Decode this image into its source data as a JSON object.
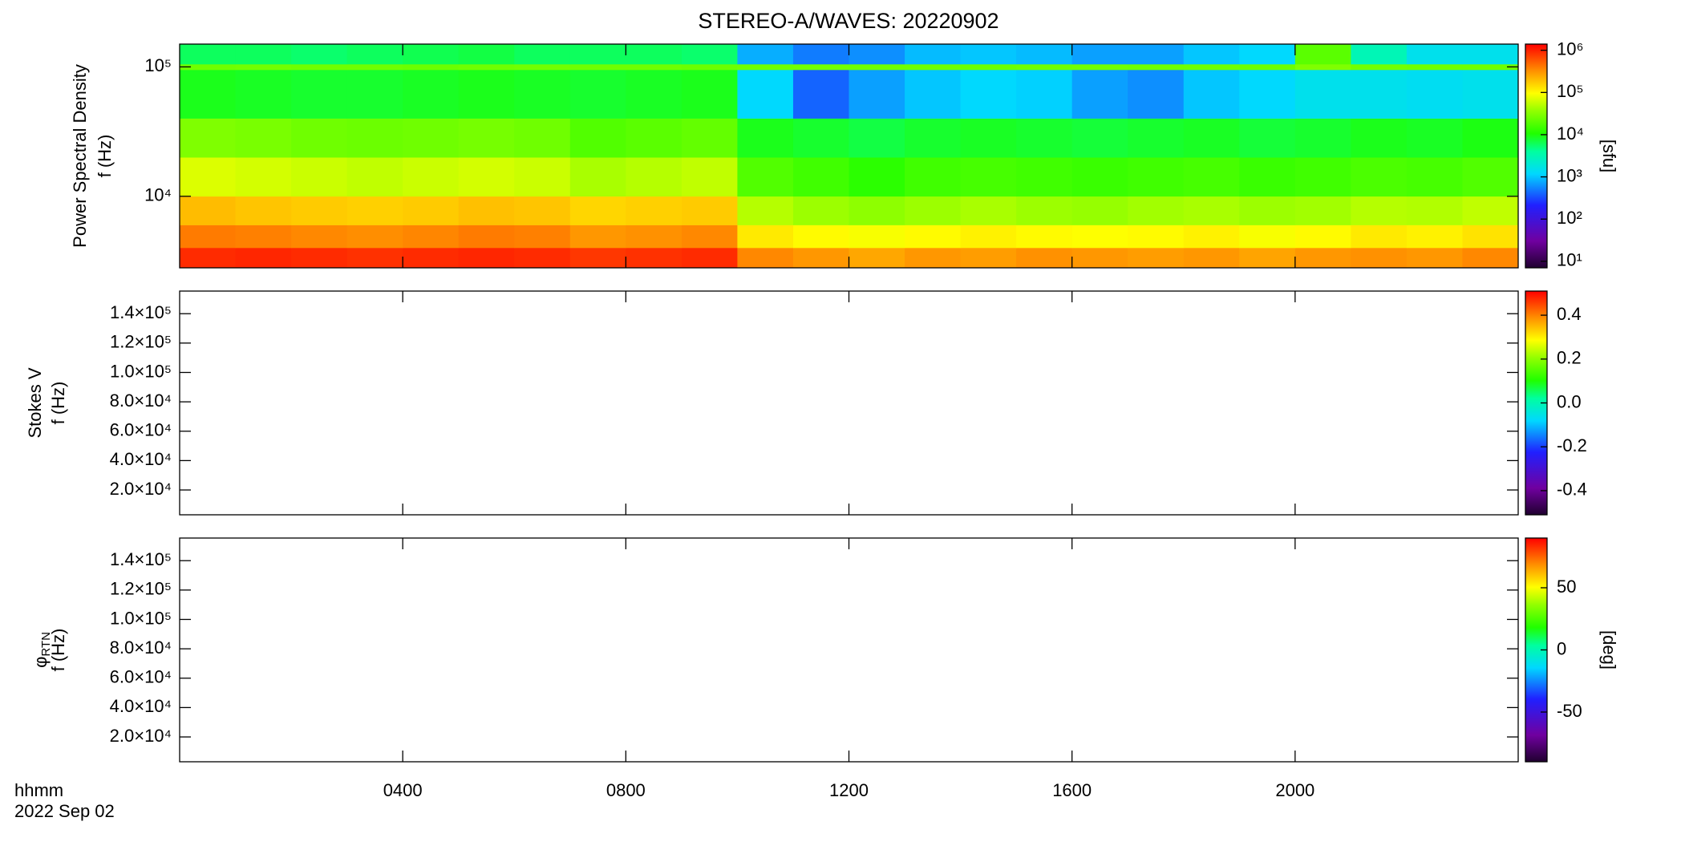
{
  "title": "STEREO-A/WAVES: 20220902",
  "x_axis": {
    "label_lines": [
      "hhmm",
      "2022 Sep 02"
    ],
    "xlim": [
      0,
      24
    ],
    "xticks": [
      {
        "value": 4,
        "label": "0400"
      },
      {
        "value": 8,
        "label": "0800"
      },
      {
        "value": 12,
        "label": "1200"
      },
      {
        "value": 16,
        "label": "1600"
      },
      {
        "value": 20,
        "label": "2000"
      }
    ]
  },
  "chart_data": [
    {
      "type": "heatmap",
      "ylabel_lines": [
        {
          "text": "Power Spectral Density"
        },
        {
          "text": "f (Hz)"
        }
      ],
      "ylog": true,
      "ylim": [
        2800,
        150000
      ],
      "yticks": [
        {
          "value": 10000,
          "label": "10⁴"
        },
        {
          "value": 100000,
          "label": "10⁵"
        }
      ],
      "time_bins": [
        0,
        1,
        2,
        3,
        4,
        5,
        6,
        7,
        8,
        9,
        10,
        11,
        12,
        13,
        14,
        15,
        16,
        17,
        18,
        19,
        20,
        21,
        22,
        23,
        24
      ],
      "freq_bins": [
        2800,
        4000,
        6000,
        10000,
        20000,
        40000,
        95000,
        105000,
        150000
      ],
      "z": [
        [
          900000,
          950000,
          900000,
          850000,
          900000,
          950000,
          900000,
          800000,
          850000,
          900000,
          350000,
          300000,
          250000,
          300000,
          280000,
          320000,
          300000,
          280000,
          300000,
          260000,
          300000,
          320000,
          300000,
          350000
        ],
        [
          400000,
          380000,
          350000,
          330000,
          360000,
          400000,
          380000,
          300000,
          320000,
          350000,
          120000,
          100000,
          90000,
          100000,
          110000,
          100000,
          95000,
          100000,
          110000,
          90000,
          100000,
          120000,
          110000,
          130000
        ],
        [
          200000,
          180000,
          170000,
          160000,
          170000,
          190000,
          180000,
          150000,
          160000,
          170000,
          50000,
          40000,
          35000,
          40000,
          45000,
          40000,
          38000,
          42000,
          45000,
          40000,
          42000,
          50000,
          48000,
          55000
        ],
        [
          70000,
          65000,
          60000,
          55000,
          60000,
          65000,
          60000,
          45000,
          50000,
          55000,
          18000,
          15000,
          12000,
          15000,
          16000,
          15000,
          14000,
          15000,
          16000,
          14000,
          15000,
          17000,
          16000,
          18000
        ],
        [
          30000,
          28000,
          25000,
          24000,
          25000,
          27000,
          25000,
          18000,
          20000,
          22000,
          9000,
          8000,
          7000,
          8000,
          8500,
          8000,
          7500,
          8000,
          8500,
          7500,
          8000,
          9000,
          8500,
          9500
        ],
        [
          9000,
          8500,
          8000,
          8000,
          8500,
          9000,
          8500,
          8000,
          8500,
          9000,
          1200,
          400,
          700,
          1000,
          1200,
          1100,
          700,
          600,
          1000,
          1200,
          1500,
          1500,
          1400,
          1500
        ],
        [
          25000,
          26000,
          25000,
          25000,
          24000,
          25000,
          26000,
          25000,
          25000,
          24000,
          25000,
          26000,
          25000,
          25000,
          24000,
          25000,
          26000,
          25000,
          25000,
          24000,
          30000,
          26000,
          25000,
          25000
        ],
        [
          6000,
          6000,
          5500,
          6000,
          6500,
          7000,
          6000,
          6000,
          6000,
          5500,
          800,
          500,
          600,
          900,
          1000,
          900,
          700,
          700,
          1000,
          1200,
          20000,
          3000,
          1500,
          1500
        ]
      ],
      "colorbar": {
        "clim": [
          7,
          1400000
        ],
        "log": true,
        "label": "[sfu]",
        "ticks": [
          {
            "value": 10,
            "label": "10¹"
          },
          {
            "value": 100,
            "label": "10²"
          },
          {
            "value": 1000,
            "label": "10³"
          },
          {
            "value": 10000,
            "label": "10⁴"
          },
          {
            "value": 100000,
            "label": "10⁵"
          },
          {
            "value": 1000000,
            "label": "10⁶"
          }
        ]
      }
    },
    {
      "type": "heatmap",
      "ylabel_lines": [
        {
          "text": "Stokes V"
        },
        {
          "text": "f (Hz)"
        }
      ],
      "ylog": false,
      "ylim": [
        3100,
        155400
      ],
      "yticks": [
        {
          "value": 20000,
          "label": "2.0×10⁴"
        },
        {
          "value": 40000,
          "label": "4.0×10⁴"
        },
        {
          "value": 60000,
          "label": "6.0×10⁴"
        },
        {
          "value": 80000,
          "label": "8.0×10⁴"
        },
        {
          "value": 100000,
          "label": "1.0×10⁵"
        },
        {
          "value": 120000,
          "label": "1.2×10⁵"
        },
        {
          "value": 140000,
          "label": "1.4×10⁵"
        }
      ],
      "colorbar": {
        "clim": [
          -0.51,
          0.51
        ],
        "log": false,
        "ticks": [
          -0.4,
          -0.2,
          {
            "value": 0,
            "label": "0.0"
          },
          0.2,
          0.4
        ]
      }
    },
    {
      "type": "heatmap",
      "ylabel_lines": [
        {
          "text": "φ",
          "sub": "RTN"
        },
        {
          "text": "f (Hz)"
        }
      ],
      "ylog": false,
      "ylim": [
        3100,
        155400
      ],
      "yticks": [
        {
          "value": 20000,
          "label": "2.0×10⁴"
        },
        {
          "value": 40000,
          "label": "4.0×10⁴"
        },
        {
          "value": 60000,
          "label": "6.0×10⁴"
        },
        {
          "value": 80000,
          "label": "8.0×10⁴"
        },
        {
          "value": 100000,
          "label": "1.0×10⁵"
        },
        {
          "value": 120000,
          "label": "1.2×10⁵"
        },
        {
          "value": 140000,
          "label": "1.4×10⁵"
        }
      ],
      "colorbar": {
        "clim": [
          -90,
          90
        ],
        "log": false,
        "label": "[deg]",
        "ticks": [
          -50,
          0,
          50
        ]
      }
    }
  ]
}
